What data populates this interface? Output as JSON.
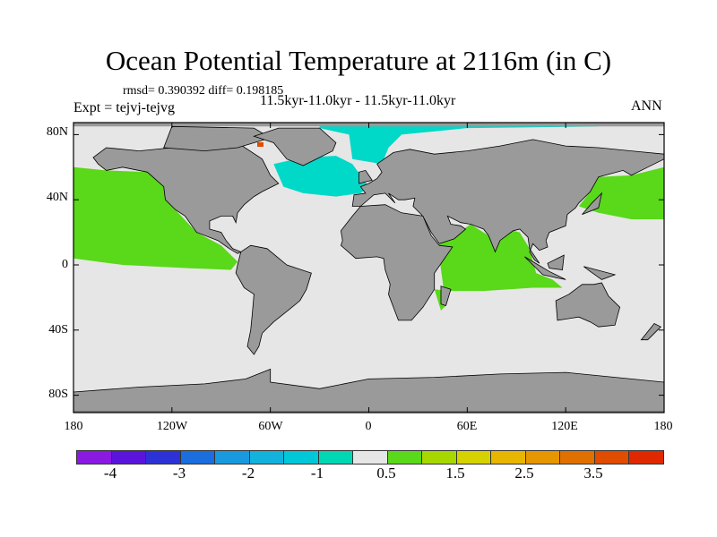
{
  "title": "Ocean Potential Temperature at 2116m (in C)",
  "stats": "rmsd= 0.390392 diff= 0.198185",
  "expt": "Expt = tejvj-tejvg",
  "period": "11.5kyr-11.0kyr - 11.5kyr-11.0kyr",
  "season": "ANN",
  "lat_ticks": [
    "80N",
    "40N",
    "0",
    "40S",
    "80S"
  ],
  "lon_ticks": [
    "180",
    "120W",
    "60W",
    "0",
    "60E",
    "120E",
    "180"
  ],
  "colorbar": {
    "colors": [
      "#8a1ae2",
      "#5a14dc",
      "#2c32d6",
      "#1a6ede",
      "#1a9ade",
      "#12b2dc",
      "#00c8d8",
      "#00d8b4",
      "#e6e6e6",
      "#5ad81a",
      "#a6d800",
      "#d6d200",
      "#e6b600",
      "#e69600",
      "#e07000",
      "#e04c00",
      "#e02800"
    ],
    "labels": [
      "-4",
      "-3",
      "-2",
      "-1",
      "0.5",
      "1.5",
      "2.5",
      "3.5"
    ]
  },
  "map_colors": {
    "land": "#9a9a9a",
    "ocean": "#e6e6e6",
    "green": "#5ad81a",
    "cyan": "#00d8c8",
    "red": "#e04c00"
  }
}
